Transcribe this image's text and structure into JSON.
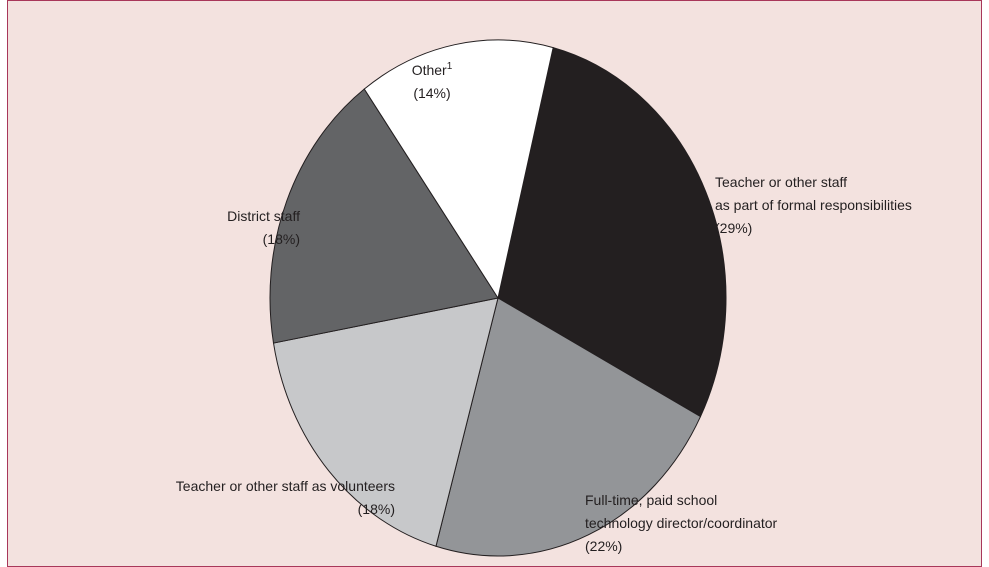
{
  "chart_data": {
    "type": "pie",
    "categories": [
      "Teacher or other staff\nas part of formal responsibilities",
      "Full-time, paid school\ntechnology director/coordinator",
      "Teacher or other staff as volunteers",
      "District staff",
      "Other"
    ],
    "category_notes": [
      null,
      null,
      null,
      null,
      "1"
    ],
    "values": [
      29,
      22,
      18,
      18,
      14
    ],
    "value_labels": [
      "(29%)",
      "(22%)",
      "(18%)",
      "(18%)",
      "(14%)"
    ],
    "colors": [
      "#231f20",
      "#939598",
      "#c7c8ca",
      "#636466",
      "#ffffff"
    ]
  }
}
